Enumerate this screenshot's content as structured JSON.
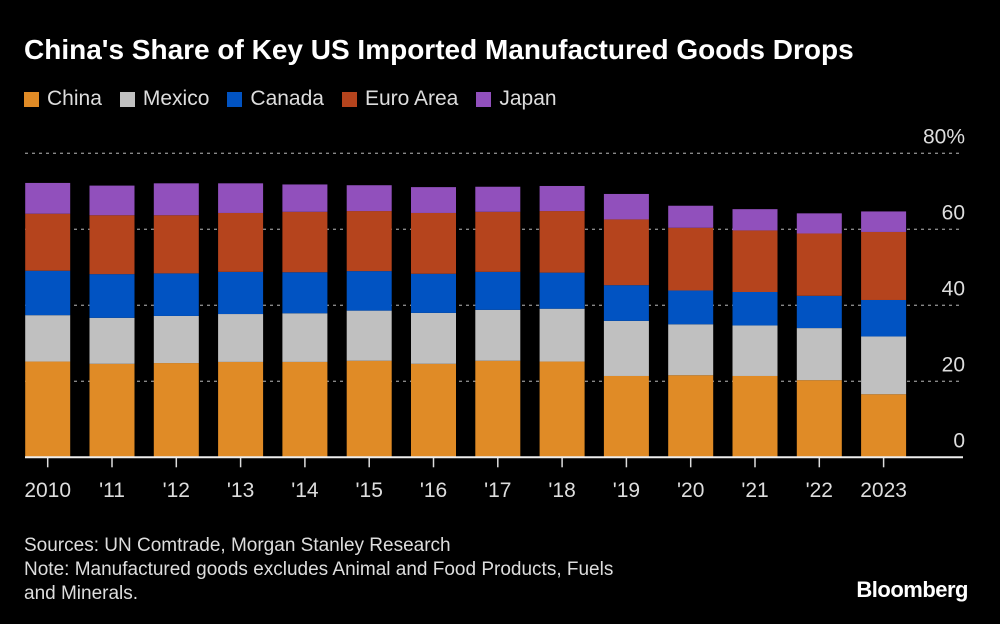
{
  "chart_data": {
    "type": "bar",
    "stacked": true,
    "title": "China's Share of Key US Imported Manufactured Goods Drops",
    "categories": [
      "2010",
      "'11",
      "'12",
      "'13",
      "'14",
      "'15",
      "'16",
      "'17",
      "'18",
      "'19",
      "'20",
      "'21",
      "'22",
      "2023"
    ],
    "series": [
      {
        "name": "China",
        "color": "#e08b26",
        "values": [
          25.2,
          24.6,
          24.8,
          25.1,
          25.1,
          25.4,
          24.6,
          25.4,
          25.2,
          21.4,
          21.6,
          21.4,
          20.3,
          16.6
        ]
      },
      {
        "name": "Mexico",
        "color": "#c0c0c0",
        "values": [
          12.2,
          12.1,
          12.4,
          12.6,
          12.8,
          13.2,
          13.4,
          13.4,
          13.9,
          14.5,
          13.4,
          13.3,
          13.7,
          15.2
        ]
      },
      {
        "name": "Canada",
        "color": "#0153c2",
        "values": [
          11.7,
          11.5,
          11.2,
          11.1,
          10.8,
          10.4,
          10.3,
          10.0,
          9.5,
          9.4,
          8.9,
          8.8,
          8.5,
          9.6
        ]
      },
      {
        "name": "Euro Area",
        "color": "#b5441d",
        "values": [
          15.0,
          15.5,
          15.3,
          15.5,
          15.9,
          15.8,
          16.0,
          15.8,
          16.2,
          17.3,
          16.5,
          16.2,
          16.4,
          17.9
        ]
      },
      {
        "name": "Japan",
        "color": "#9150bc",
        "values": [
          8.1,
          7.8,
          8.4,
          7.8,
          7.2,
          6.8,
          6.8,
          6.6,
          6.6,
          6.7,
          5.8,
          5.6,
          5.3,
          5.4
        ]
      }
    ],
    "ylim": [
      0,
      80
    ],
    "yticks": [
      0,
      20,
      40,
      60,
      80
    ],
    "ytick_labels": [
      "0",
      "20",
      "40",
      "60",
      "80%"
    ],
    "y_axis_position": "right",
    "grid": "horizontal dotted",
    "legend_placement": "top-left"
  },
  "footer": {
    "sources": "Sources: UN Comtrade, Morgan Stanley Research",
    "note_line1": "Note: Manufactured goods excludes Animal and Food Products, Fuels",
    "note_line2": "and Minerals."
  },
  "logo": "Bloomberg"
}
